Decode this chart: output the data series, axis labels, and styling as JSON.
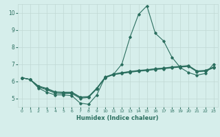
{
  "xlabel": "Humidex (Indice chaleur)",
  "bg_color": "#d6eeeb",
  "grid_color": "#c0d8d4",
  "line_color": "#2a6e5e",
  "xlim": [
    -0.5,
    23.5
  ],
  "ylim": [
    4.5,
    10.5
  ],
  "yticks": [
    5,
    6,
    7,
    8,
    9,
    10
  ],
  "xticks": [
    0,
    1,
    2,
    3,
    4,
    5,
    6,
    7,
    8,
    9,
    10,
    11,
    12,
    13,
    14,
    15,
    16,
    17,
    18,
    19,
    20,
    21,
    22,
    23
  ],
  "line1": [
    6.2,
    6.1,
    5.6,
    5.35,
    5.2,
    5.2,
    5.15,
    4.72,
    4.65,
    5.2,
    6.25,
    6.4,
    7.0,
    8.6,
    9.9,
    10.4,
    8.8,
    8.35,
    7.4,
    6.8,
    6.5,
    6.35,
    6.45,
    7.0
  ],
  "line2": [
    6.2,
    6.1,
    5.65,
    5.5,
    5.3,
    5.28,
    5.28,
    5.0,
    5.05,
    5.55,
    6.2,
    6.38,
    6.45,
    6.52,
    6.58,
    6.62,
    6.68,
    6.72,
    6.78,
    6.82,
    6.86,
    6.55,
    6.58,
    6.78
  ],
  "line3": [
    6.2,
    6.1,
    5.7,
    5.55,
    5.35,
    5.33,
    5.33,
    5.05,
    5.08,
    5.58,
    6.22,
    6.4,
    6.48,
    6.55,
    6.61,
    6.65,
    6.71,
    6.75,
    6.81,
    6.85,
    6.89,
    6.58,
    6.61,
    6.81
  ],
  "line4": [
    6.2,
    6.1,
    5.72,
    5.58,
    5.38,
    5.36,
    5.36,
    5.08,
    5.1,
    5.6,
    6.24,
    6.42,
    6.5,
    6.57,
    6.63,
    6.67,
    6.73,
    6.77,
    6.83,
    6.87,
    6.91,
    6.6,
    6.63,
    6.83
  ]
}
